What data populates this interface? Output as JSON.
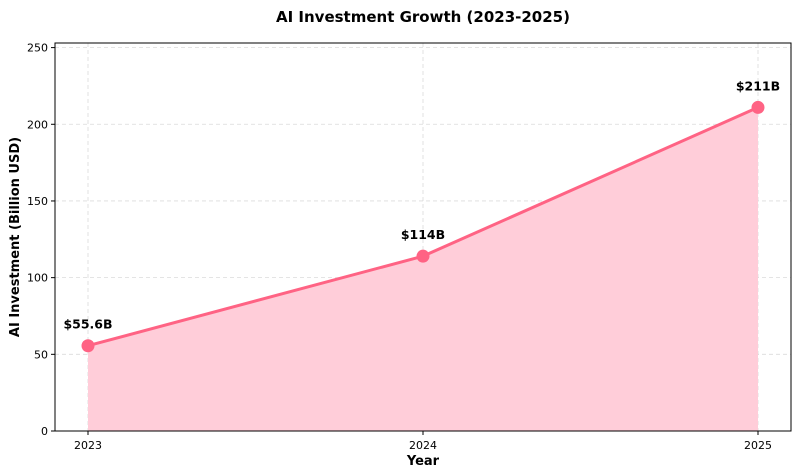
{
  "chart_data": {
    "type": "area",
    "title": "AI Investment Growth (2023-2025)",
    "xlabel": "Year",
    "ylabel": "AI Investment (Billion USD)",
    "categories": [
      "2023",
      "2024",
      "2025"
    ],
    "series": [
      {
        "values": [
          55.6,
          114,
          211
        ],
        "data_labels": [
          "$55.6B",
          "$114B",
          "$211B"
        ]
      }
    ],
    "ylim": [
      0,
      253
    ],
    "yticks": [
      0,
      50,
      100,
      150,
      200,
      250
    ],
    "grid": true,
    "colors": {
      "line": "#ff6384",
      "fill": "#ffcdd9",
      "marker": "#ff6384"
    }
  }
}
